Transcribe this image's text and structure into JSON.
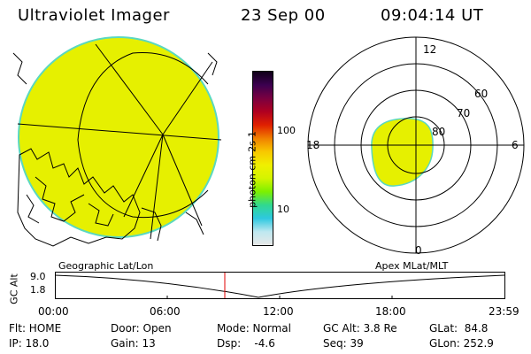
{
  "header": {
    "instrument": "Ultraviolet Imager",
    "date": "23 Sep 00",
    "time": "09:04:14 UT"
  },
  "colorbar": {
    "label": "photon cm-2s-1",
    "ticks": [
      "100",
      "10"
    ],
    "colors": [
      "#e8e8e8",
      "#bfe8f0",
      "#2ec8e0",
      "#30d890",
      "#7cf000",
      "#d4f400",
      "#f0f000",
      "#f8c800",
      "#f08000",
      "#e02000",
      "#b00020",
      "#7a0040",
      "#3c0050",
      "#100018"
    ]
  },
  "geographic_panel": {
    "label": "Geographic Lat/Lon",
    "fill_color": "#e6f000"
  },
  "polar_panel": {
    "label": "Apex MLat/MLT",
    "mlt_labels": {
      "top": "12",
      "left": "18",
      "right": "6",
      "bottom": "0"
    },
    "lat_labels": [
      "60",
      "70",
      "80"
    ],
    "fill_color": "#e6f000"
  },
  "timeline": {
    "axis_label": "GC Alt",
    "y_ticks": [
      "9.0",
      "1.8"
    ],
    "x_ticks": [
      "00:00",
      "06:00",
      "12:00",
      "18:00",
      "23:59"
    ],
    "marker_time": "09:04"
  },
  "status": {
    "flt": "Flt: HOME",
    "ip": "IP: 18.0",
    "door": "Door: Open",
    "gain": "Gain: 13",
    "mode": "Mode: Normal",
    "dsp": "Dsp:    -4.6",
    "gc_alt": "GC Alt: 3.8 Re",
    "seq": "Seq: 39",
    "glat": "GLat:  84.8",
    "glon": "GLon: 252.9"
  }
}
